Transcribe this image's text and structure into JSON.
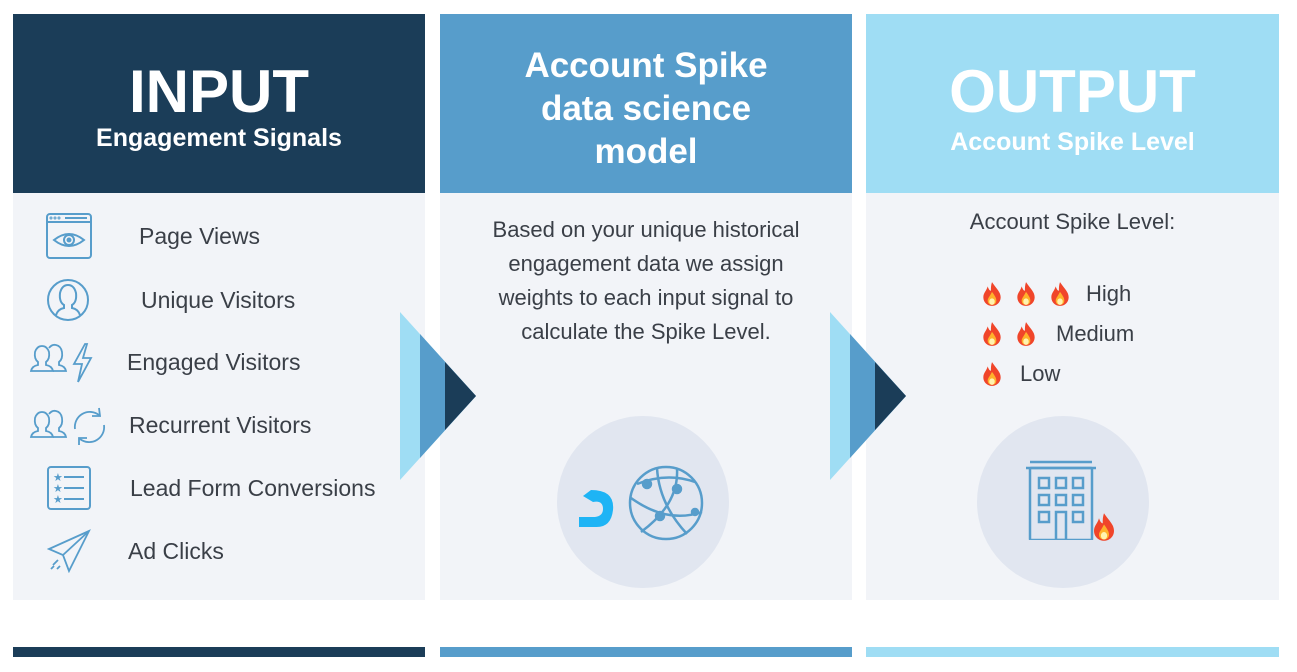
{
  "input": {
    "title": "INPUT",
    "subtitle": "Engagement Signals",
    "items": [
      {
        "label": "Page Views",
        "icon": "browser-eye-icon"
      },
      {
        "label": "Unique Visitors",
        "icon": "user-circle-icon"
      },
      {
        "label": "Engaged Visitors",
        "icon": "users-lightning-icon"
      },
      {
        "label": "Recurrent Visitors",
        "icon": "users-refresh-icon"
      },
      {
        "label": "Lead Form Conversions",
        "icon": "star-list-icon"
      },
      {
        "label": "Ad Clicks",
        "icon": "paper-plane-icon"
      }
    ]
  },
  "model": {
    "title_lines": [
      "Account Spike",
      "data science",
      "model"
    ],
    "description": "Based on your unique historical engagement data we assign weights to each input signal to calculate the Spike Level."
  },
  "output": {
    "title": "OUTPUT",
    "subtitle": "Account Spike Level",
    "label": "Account Spike Level:",
    "levels": [
      {
        "name": "High",
        "flames": 3
      },
      {
        "name": "Medium",
        "flames": 2
      },
      {
        "name": "Low",
        "flames": 1
      }
    ]
  },
  "colors": {
    "dark": "#1b3d58",
    "mid": "#579dcb",
    "light": "#9fddf4",
    "panel": "#f2f4f8",
    "icon": "#579dcb",
    "brand": "#1eb4f5"
  }
}
